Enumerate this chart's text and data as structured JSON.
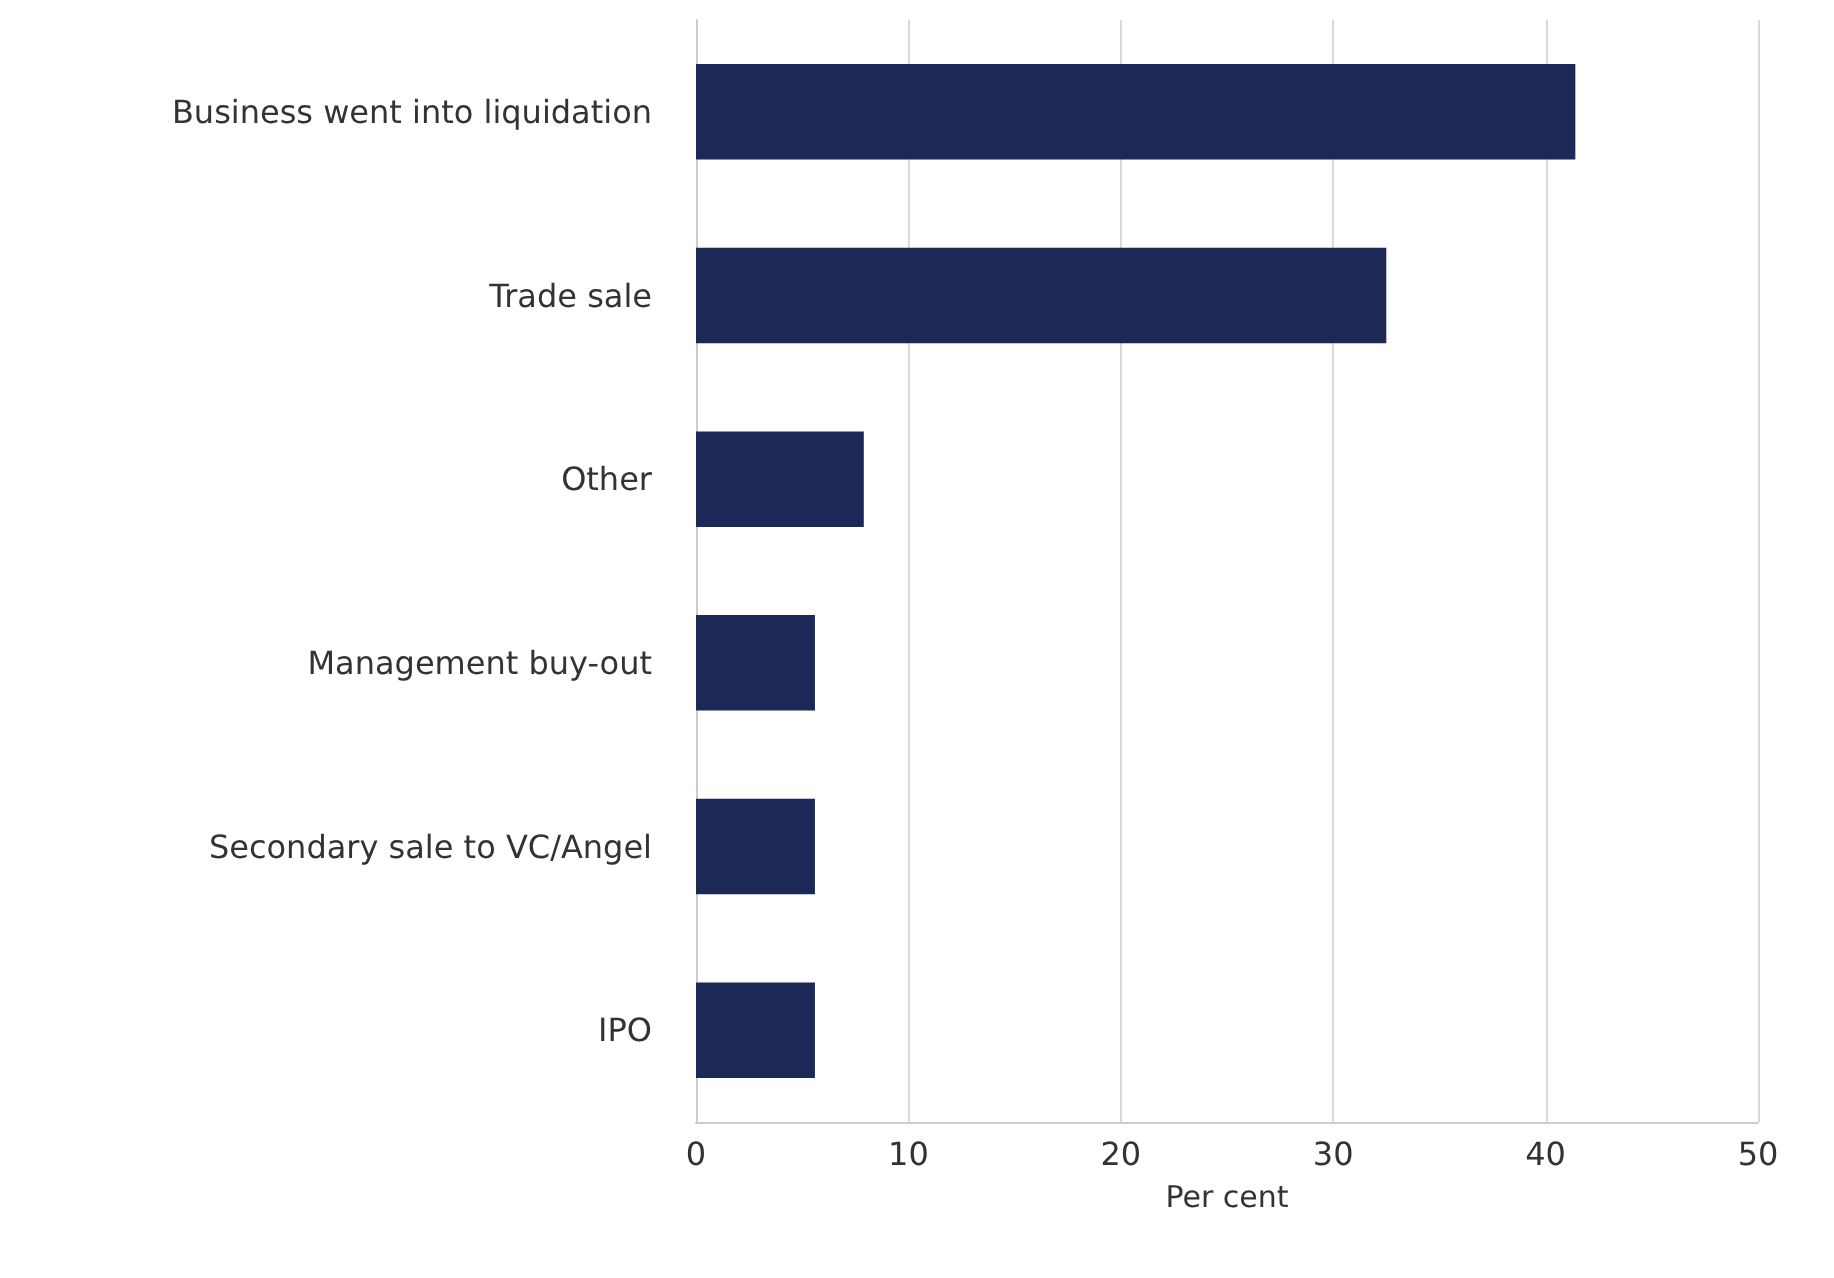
{
  "chart_data": {
    "type": "bar",
    "orientation": "horizontal",
    "categories": [
      "Business went into liquidation",
      "Trade sale",
      "Other",
      "Management buy-out",
      "Secondary sale to VC/Angel",
      "IPO"
    ],
    "values": [
      41.4,
      32.5,
      7.9,
      5.6,
      5.6,
      5.6
    ],
    "color": "#1c2957",
    "xlabel": "Per cent",
    "xlim": [
      0,
      50
    ],
    "xticks": [
      0,
      10,
      20,
      30,
      40,
      50
    ],
    "grid": "x"
  }
}
